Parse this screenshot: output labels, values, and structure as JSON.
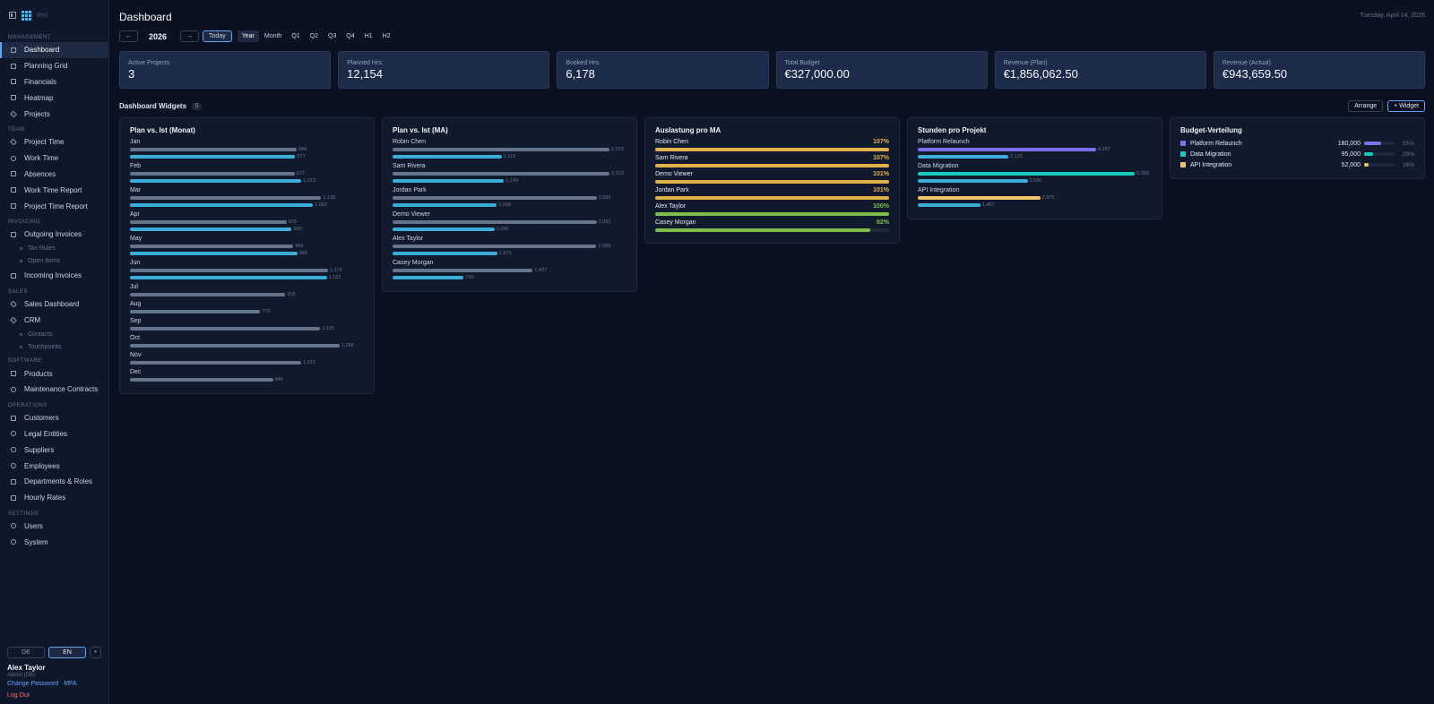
{
  "app": {
    "logo_text": "Res"
  },
  "sidebar": {
    "sections": [
      {
        "label": "MANAGEMENT",
        "items": [
          {
            "label": "Dashboard",
            "icon": "dashboard-icon",
            "active": true
          },
          {
            "label": "Planning Grid",
            "icon": "grid-icon"
          },
          {
            "label": "Financials",
            "icon": "dollar-icon"
          },
          {
            "label": "Heatmap",
            "icon": "heatmap-icon"
          },
          {
            "label": "Projects",
            "icon": "diamond-icon"
          }
        ]
      },
      {
        "label": "TEAM",
        "items": [
          {
            "label": "Project Time",
            "icon": "star-icon"
          },
          {
            "label": "Work Time",
            "icon": "clock-icon"
          },
          {
            "label": "Absences",
            "icon": "home-icon"
          },
          {
            "label": "Work Time Report",
            "icon": "list-icon"
          },
          {
            "label": "Project Time Report",
            "icon": "list-icon"
          }
        ]
      },
      {
        "label": "INVOICING",
        "items": [
          {
            "label": "Outgoing Invoices",
            "icon": "invoice-icon",
            "children": [
              "Tax Rules",
              "Open Items"
            ]
          },
          {
            "label": "Incoming Invoices",
            "icon": "invoice-in-icon"
          }
        ]
      },
      {
        "label": "SALES",
        "items": [
          {
            "label": "Sales Dashboard",
            "icon": "diamond-icon"
          },
          {
            "label": "CRM",
            "icon": "diamond-icon",
            "children": [
              "Contacts",
              "Touchpoints"
            ]
          }
        ]
      },
      {
        "label": "SOFTWARE",
        "items": [
          {
            "label": "Products",
            "icon": "product-icon"
          },
          {
            "label": "Maintenance Contracts",
            "icon": "refresh-icon"
          }
        ]
      },
      {
        "label": "OPERATIONS",
        "items": [
          {
            "label": "Customers",
            "icon": "customers-icon"
          },
          {
            "label": "Legal Entities",
            "icon": "entity-icon"
          },
          {
            "label": "Suppliers",
            "icon": "supplier-icon"
          },
          {
            "label": "Employees",
            "icon": "employee-icon"
          },
          {
            "label": "Departments & Roles",
            "icon": "list-icon"
          },
          {
            "label": "Hourly Rates",
            "icon": "euro-icon"
          }
        ]
      },
      {
        "label": "SETTINGS",
        "items": [
          {
            "label": "Users",
            "icon": "users-icon"
          },
          {
            "label": "System",
            "icon": "gear-icon"
          }
        ]
      }
    ],
    "lang": {
      "de": "DE",
      "en": "EN",
      "dot": "•"
    },
    "user": {
      "name": "Alex Taylor",
      "role": "Admin (DB)",
      "change_password": "Change Password",
      "mfa": "MFA",
      "logout": "Log Out"
    }
  },
  "header": {
    "title": "Dashboard",
    "date": "Tuesday, April 14, 2026"
  },
  "period": {
    "prev": "←",
    "year": "2026",
    "next": "→",
    "today": "Today",
    "options": [
      "Year",
      "Month",
      "Q1",
      "Q2",
      "Q3",
      "Q4",
      "H1",
      "H2"
    ],
    "selected": "Year"
  },
  "kpis": [
    {
      "label": "Active Projects",
      "value": "3"
    },
    {
      "label": "Planned Hrs.",
      "value": "12,154"
    },
    {
      "label": "Booked Hrs.",
      "value": "6,178"
    },
    {
      "label": "Total Budget",
      "value": "€327,000.00"
    },
    {
      "label": "Revenue (Plan)",
      "value": "€1,856,062.50"
    },
    {
      "label": "Revenue (Actual)",
      "value": "€943,659.50"
    }
  ],
  "widgets": {
    "title": "Dashboard Widgets",
    "count": "5",
    "arrange": "Arrange",
    "add": "+ Widget"
  },
  "colors": {
    "plan": "#64748b",
    "ist": "#3aaed8",
    "orange": "#e5b04a",
    "green": "#7cc04b",
    "purple": "#7c6ff0",
    "teal": "#18c9bf",
    "yellow": "#f2c569"
  },
  "chart_data": [
    {
      "type": "bar",
      "title": "Plan vs. Ist (Monat)",
      "categories": [
        "Jan",
        "Feb",
        "Mar",
        "Apr",
        "May",
        "Jun",
        "Jul",
        "Aug",
        "Sep",
        "Oct",
        "Nov",
        "Dec"
      ],
      "series": [
        {
          "values": [
            984,
            972,
            1130,
            925,
            966,
            1170,
            918,
            770,
            1125,
            1238,
            1012,
            846
          ]
        },
        {
          "values": [
            977,
            1013,
            1082,
            956,
            989,
            1163,
            null,
            null,
            null,
            null,
            null,
            null
          ]
        }
      ],
      "labels": [
        [
          "984",
          "977"
        ],
        [
          "972",
          "1,013"
        ],
        [
          "1,130",
          "1,082"
        ],
        [
          "925",
          "956"
        ],
        [
          "966",
          "989"
        ],
        [
          "1,170",
          "1,163"
        ],
        [
          "918"
        ],
        [
          "770"
        ],
        [
          "1,125"
        ],
        [
          "1,238"
        ],
        [
          "1,012"
        ],
        [
          "846"
        ]
      ],
      "xmax": 1250
    },
    {
      "type": "bar",
      "title": "Plan vs. Ist (MA)",
      "categories": [
        "Robin Chen",
        "Sam Rivera",
        "Jordan Park",
        "Demo Viewer",
        "Alex Taylor",
        "Casey Morgan"
      ],
      "series": [
        {
          "values": [
            2223,
            2223,
            2092,
            2091,
            2089,
            1437
          ]
        },
        {
          "values": [
            1119,
            1143,
            1068,
            1046,
            1075,
            730
          ]
        }
      ],
      "labels": [
        [
          "2,223",
          "1,119"
        ],
        [
          "2,223",
          "1,143"
        ],
        [
          "2,092",
          "1,068"
        ],
        [
          "2,091",
          "1,046"
        ],
        [
          "2,089",
          "1,075"
        ],
        [
          "1,437",
          "730"
        ]
      ],
      "xmax": 2223
    },
    {
      "type": "bar",
      "title": "Auslastung pro MA",
      "categories": [
        "Robin Chen",
        "Sam Rivera",
        "Demo Viewer",
        "Jordan Park",
        "Alex Taylor",
        "Casey Morgan"
      ],
      "values": [
        107,
        107,
        101,
        101,
        100,
        92
      ],
      "labels": [
        "107%",
        "107%",
        "101%",
        "101%",
        "100%",
        "92%"
      ]
    },
    {
      "type": "bar",
      "title": "Stunden pro Projekt",
      "categories": [
        "Platform Relaunch",
        "Data Migration",
        "API Integration"
      ],
      "series": [
        {
          "values": [
            4187,
            5093,
            2875
          ]
        },
        {
          "values": [
            2132,
            2580,
            1467
          ]
        }
      ],
      "labels": [
        [
          "4,187",
          "2,132"
        ],
        [
          "5,093",
          "2,580"
        ],
        [
          "2,875",
          "1,467"
        ]
      ],
      "xmax": 5093
    },
    {
      "type": "bar",
      "title": "Budget-Verteilung",
      "categories": [
        "Platform Relaunch",
        "Data Migration",
        "API Integration"
      ],
      "values": [
        180000,
        95000,
        52000
      ],
      "labels": [
        "180,000",
        "95,000",
        "52,000"
      ],
      "percent": [
        "55%",
        "29%",
        "16%"
      ],
      "percent_values": [
        55,
        29,
        16
      ]
    }
  ]
}
